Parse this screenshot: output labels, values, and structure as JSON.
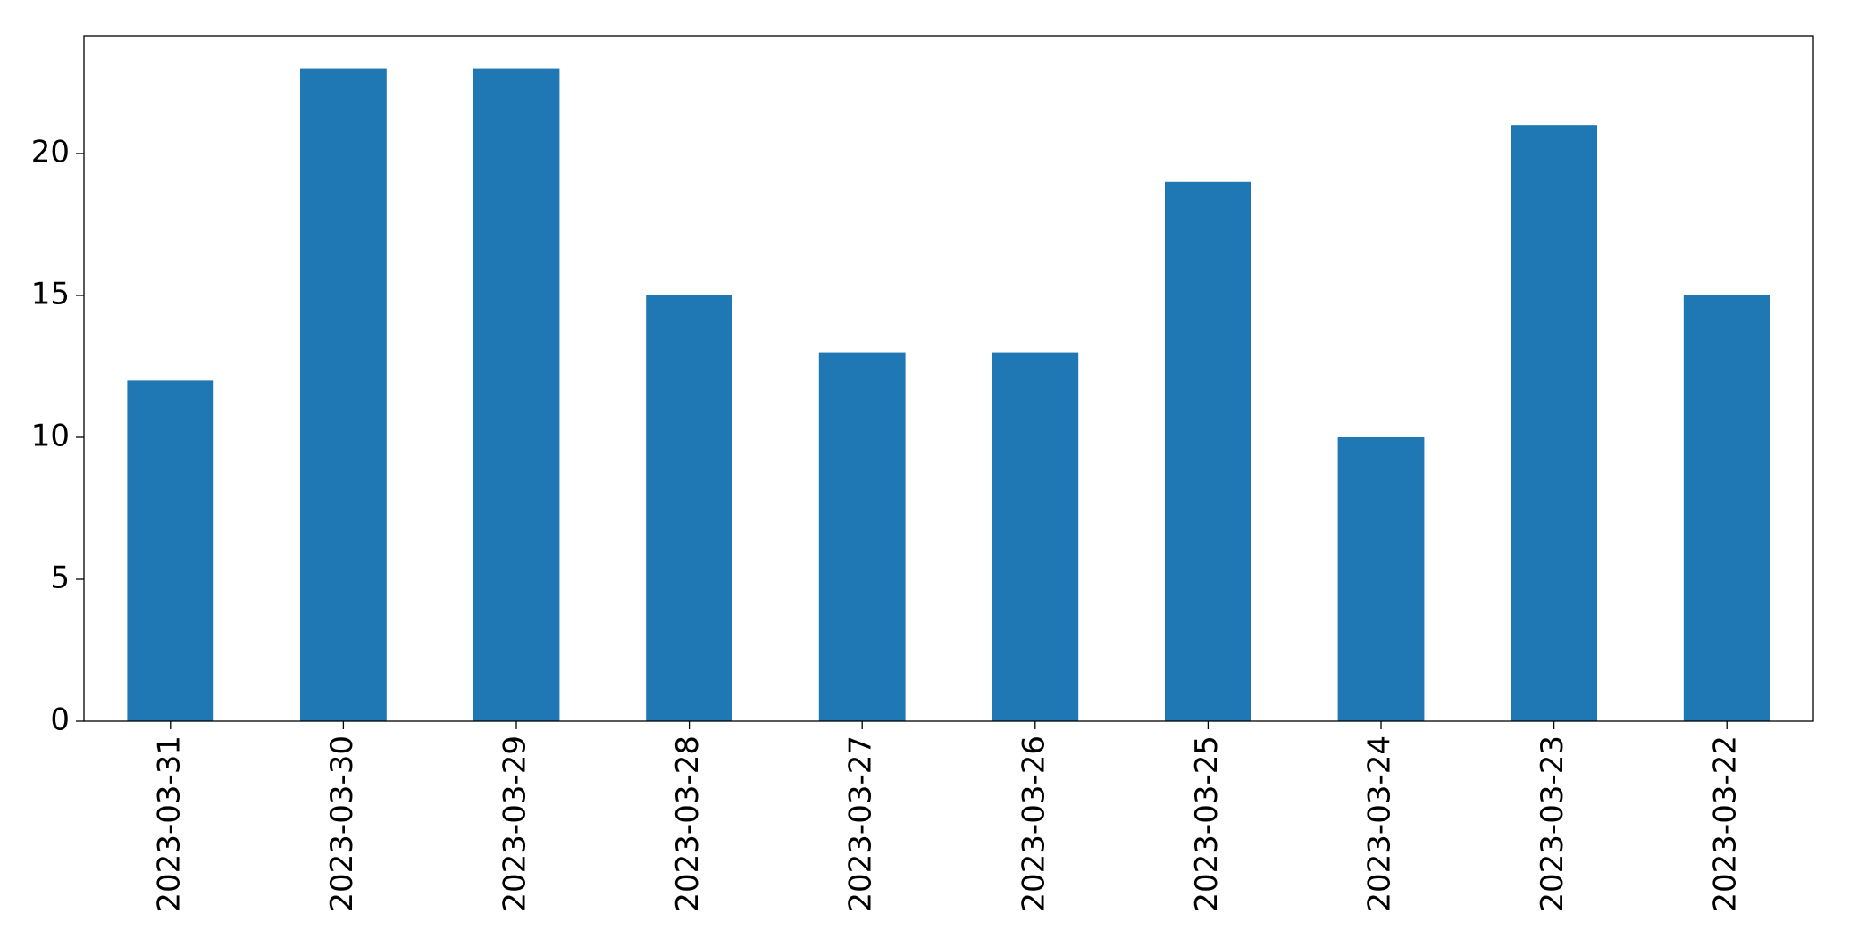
{
  "chart_data": {
    "type": "bar",
    "categories": [
      "2023-03-31",
      "2023-03-30",
      "2023-03-29",
      "2023-03-28",
      "2023-03-27",
      "2023-03-26",
      "2023-03-25",
      "2023-03-24",
      "2023-03-23",
      "2023-03-22"
    ],
    "values": [
      12,
      23,
      23,
      15,
      13,
      13,
      19,
      10,
      21,
      15
    ],
    "color": "#1f77b4",
    "ylim": [
      0,
      24.15
    ],
    "yticks": [
      0,
      5,
      10,
      15,
      20
    ],
    "grid": false
  }
}
